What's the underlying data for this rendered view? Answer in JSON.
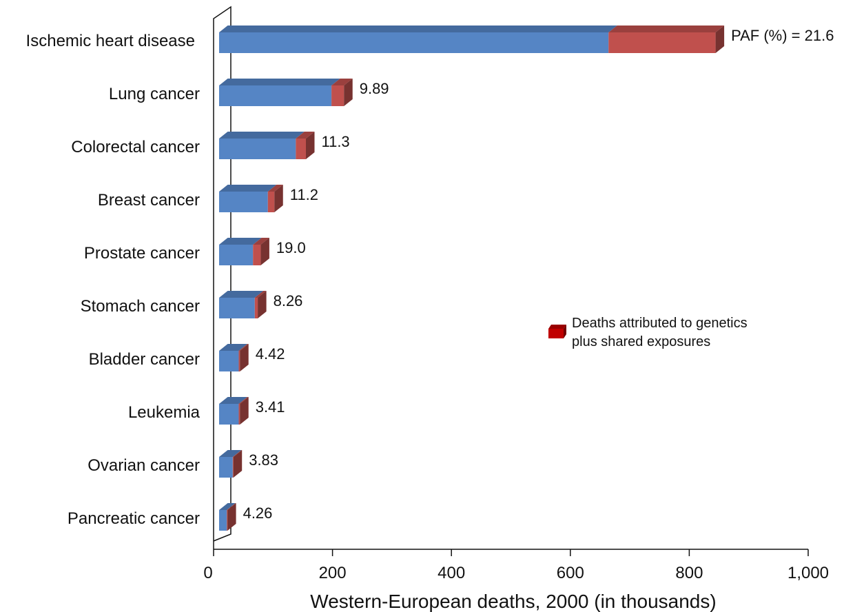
{
  "chart_data": {
    "type": "bar",
    "orientation": "horizontal",
    "stacked": true,
    "three_d": true,
    "title": "",
    "xlabel": "Western-European  deaths, 2000 (in thousands)",
    "ylabel": "",
    "xlim": [
      0,
      1000
    ],
    "x_ticks": [
      0,
      200,
      400,
      600,
      800,
      1000
    ],
    "x_tick_labels": [
      "0",
      "200",
      "400",
      "600",
      "800",
      "1,000"
    ],
    "grid": false,
    "categories": [
      "Ischemic heart disease",
      "Lung cancer",
      "Colorectal cancer",
      "Breast cancer",
      "Prostate cancer",
      "Stomach cancer",
      "Bladder cancer",
      "Leukemia",
      "Ovarian cancer",
      "Pancreatic cancer"
    ],
    "series": [
      {
        "color": "#5585c5",
        "values": [
          655,
          189,
          129,
          82,
          57,
          60,
          33,
          33,
          23,
          13
        ]
      },
      {
        "name": "Deaths attributed to genetics plus shared exposures",
        "color": "#c0504d",
        "values": [
          180,
          21,
          17,
          11,
          13,
          5,
          2,
          2,
          1,
          1
        ]
      }
    ],
    "data_labels": [
      "PAF (%) = 21.6",
      "9.89",
      "11.3",
      "11.2",
      "19.0",
      "8.26",
      "4.42",
      "3.41",
      "3.83",
      "4.26"
    ],
    "legend": {
      "placement": "right-middle",
      "label": "Deaths attributed to genetics plus shared exposures",
      "lines": [
        "Deaths attributed to genetics",
        "plus shared exposures"
      ],
      "swatch_color": "#c00000"
    }
  }
}
